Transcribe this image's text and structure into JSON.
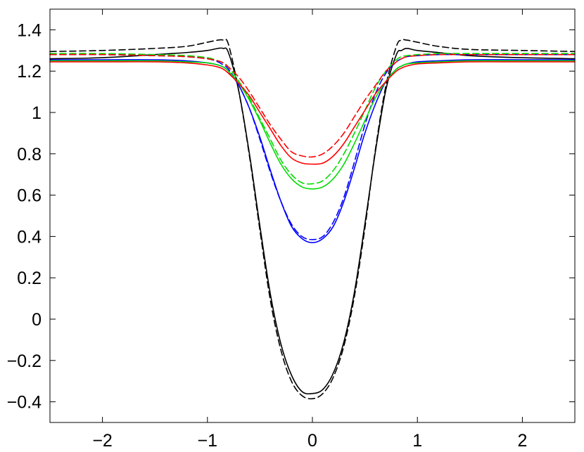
{
  "chart_data": {
    "type": "line",
    "title": "",
    "xlabel": "",
    "ylabel": "",
    "xlim": [
      -2.5,
      2.5
    ],
    "ylim": [
      -0.5,
      1.5
    ],
    "xticks": [
      -2,
      -1,
      0,
      1,
      2
    ],
    "xtick_labels": [
      "−2",
      "−1",
      "0",
      "1",
      "2"
    ],
    "yticks": [
      -0.4,
      -0.2,
      0,
      0.2,
      0.4,
      0.6,
      0.8,
      1,
      1.2,
      1.4
    ],
    "ytick_labels": [
      "−0.4",
      "−0.2",
      "0",
      "0.2",
      "0.4",
      "0.6",
      "0.8",
      "1",
      "1.2",
      "1.4"
    ],
    "grid": false,
    "legend": "none",
    "x": [
      -2.5,
      -2.0,
      -1.5,
      -1.2,
      -1.0,
      -0.9,
      -0.85,
      -0.8,
      -0.7,
      -0.6,
      -0.5,
      -0.4,
      -0.3,
      -0.2,
      -0.1,
      0.0,
      0.1,
      0.2,
      0.3,
      0.4,
      0.5,
      0.6,
      0.7,
      0.8,
      0.85,
      0.9,
      1.0,
      1.2,
      1.5,
      2.0,
      2.5
    ],
    "series": [
      {
        "color": "#000000",
        "dash": "solid",
        "values": [
          1.26,
          1.265,
          1.28,
          1.29,
          1.3,
          1.31,
          1.31,
          1.29,
          1.1,
          0.8,
          0.45,
          0.12,
          -0.12,
          -0.27,
          -0.35,
          -0.36,
          -0.34,
          -0.26,
          -0.11,
          0.13,
          0.46,
          0.81,
          1.11,
          1.28,
          1.3,
          1.31,
          1.3,
          1.29,
          1.275,
          1.265,
          1.26
        ]
      },
      {
        "color": "#000000",
        "dash": "dashed",
        "values": [
          1.295,
          1.3,
          1.31,
          1.32,
          1.34,
          1.35,
          1.35,
          1.33,
          1.1,
          0.79,
          0.43,
          0.09,
          -0.15,
          -0.3,
          -0.37,
          -0.385,
          -0.36,
          -0.28,
          -0.13,
          0.11,
          0.44,
          0.82,
          1.13,
          1.32,
          1.35,
          1.35,
          1.34,
          1.32,
          1.305,
          1.3,
          1.295
        ]
      },
      {
        "color": "#0000ff",
        "dash": "solid",
        "values": [
          1.255,
          1.255,
          1.255,
          1.25,
          1.24,
          1.23,
          1.22,
          1.2,
          1.13,
          1.02,
          0.88,
          0.72,
          0.57,
          0.45,
          0.39,
          0.37,
          0.39,
          0.45,
          0.57,
          0.73,
          0.9,
          1.04,
          1.15,
          1.21,
          1.225,
          1.235,
          1.245,
          1.25,
          1.255,
          1.255,
          1.255
        ]
      },
      {
        "color": "#0000ff",
        "dash": "dashed",
        "values": [
          1.28,
          1.28,
          1.275,
          1.27,
          1.26,
          1.245,
          1.23,
          1.21,
          1.13,
          1.02,
          0.87,
          0.71,
          0.57,
          0.46,
          0.4,
          0.385,
          0.4,
          0.47,
          0.59,
          0.76,
          0.94,
          1.09,
          1.19,
          1.245,
          1.26,
          1.27,
          1.275,
          1.28,
          1.28,
          1.28,
          1.28
        ]
      },
      {
        "color": "#00dd00",
        "dash": "solid",
        "values": [
          1.25,
          1.25,
          1.25,
          1.245,
          1.24,
          1.23,
          1.22,
          1.2,
          1.14,
          1.06,
          0.96,
          0.85,
          0.75,
          0.68,
          0.64,
          0.63,
          0.64,
          0.68,
          0.75,
          0.85,
          0.96,
          1.07,
          1.15,
          1.21,
          1.225,
          1.235,
          1.24,
          1.245,
          1.25,
          1.25,
          1.25
        ]
      },
      {
        "color": "#00dd00",
        "dash": "dashed",
        "values": [
          1.285,
          1.285,
          1.28,
          1.275,
          1.265,
          1.25,
          1.24,
          1.22,
          1.15,
          1.07,
          0.97,
          0.87,
          0.77,
          0.7,
          0.66,
          0.655,
          0.67,
          0.72,
          0.8,
          0.9,
          1.01,
          1.12,
          1.2,
          1.255,
          1.27,
          1.275,
          1.28,
          1.285,
          1.285,
          1.285,
          1.285
        ]
      },
      {
        "color": "#ff0000",
        "dash": "solid",
        "values": [
          1.245,
          1.245,
          1.245,
          1.24,
          1.23,
          1.22,
          1.21,
          1.19,
          1.14,
          1.08,
          1.0,
          0.92,
          0.84,
          0.78,
          0.755,
          0.75,
          0.755,
          0.79,
          0.85,
          0.93,
          1.01,
          1.09,
          1.15,
          1.2,
          1.215,
          1.225,
          1.235,
          1.24,
          1.245,
          1.245,
          1.245
        ]
      },
      {
        "color": "#ff0000",
        "dash": "dashed",
        "values": [
          1.28,
          1.28,
          1.275,
          1.27,
          1.26,
          1.25,
          1.24,
          1.22,
          1.17,
          1.1,
          1.02,
          0.94,
          0.87,
          0.81,
          0.79,
          0.785,
          0.8,
          0.84,
          0.9,
          0.98,
          1.06,
          1.13,
          1.2,
          1.245,
          1.26,
          1.27,
          1.275,
          1.28,
          1.28,
          1.28,
          1.28
        ]
      }
    ]
  }
}
